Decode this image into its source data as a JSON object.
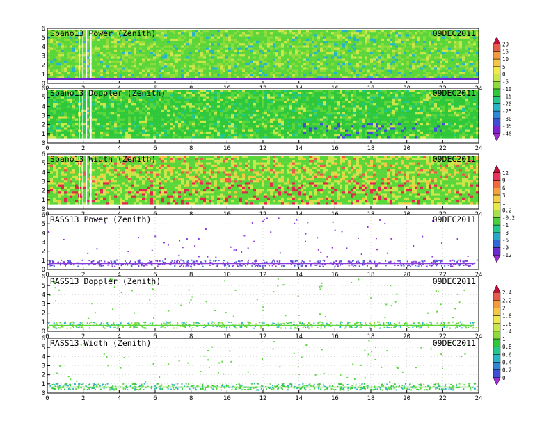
{
  "date": "09DEC2011",
  "chart_data": [
    {
      "type": "heatmap",
      "title": "Spano13 Power (Zenith)",
      "date": "09DEC2011",
      "x_ticks": [
        "0",
        "2",
        "4",
        "6",
        "8",
        "10",
        "12",
        "14",
        "16",
        "18",
        "20",
        "22",
        "24"
      ],
      "y_ticks": [
        "0",
        "1",
        "2",
        "3",
        "4",
        "5",
        "6"
      ],
      "xlim": [
        0,
        24
      ],
      "ylim": [
        0,
        6
      ],
      "colorbar": {
        "labels": [
          "20",
          "15",
          "10",
          "5",
          "0",
          "-5",
          "-10",
          "-15",
          "-20",
          "-25",
          "-30",
          "-35",
          "-40"
        ],
        "colors": [
          "#cc0a3a",
          "#e85a4a",
          "#f49a3c",
          "#f4c642",
          "#f1e84a",
          "#c9e64a",
          "#8edc3a",
          "#2ec83a",
          "#22c88a",
          "#28b4c8",
          "#2f86d6",
          "#3f4ed8",
          "#7e22d0",
          "#a42ad6"
        ]
      },
      "dominant_colors": [
        "#5ad63a",
        "#8edc3a",
        "#c9e64a",
        "#28b4c8"
      ]
    },
    {
      "type": "heatmap",
      "title": "Spano13 Doppler (Zenith)",
      "date": "09DEC2011",
      "x_ticks": [
        "0",
        "2",
        "4",
        "6",
        "8",
        "10",
        "12",
        "14",
        "16",
        "18",
        "20",
        "22",
        "24"
      ],
      "y_ticks": [
        "0",
        "1",
        "2",
        "3",
        "4",
        "5",
        "6"
      ],
      "xlim": [
        0,
        24
      ],
      "ylim": [
        0,
        6
      ],
      "dominant_colors": [
        "#2ec83a",
        "#5ad63a",
        "#c9e64a",
        "#22c88a",
        "#28b4c8"
      ]
    },
    {
      "type": "heatmap",
      "title": "Spano13 Width (Zenith)",
      "date": "09DEC2011",
      "x_ticks": [
        "0",
        "2",
        "4",
        "6",
        "8",
        "10",
        "12",
        "14",
        "16",
        "18",
        "20",
        "22",
        "24"
      ],
      "y_ticks": [
        "0",
        "1",
        "2",
        "3",
        "4",
        "5",
        "6"
      ],
      "xlim": [
        0,
        24
      ],
      "ylim": [
        0,
        6
      ],
      "colorbar": {
        "labels": [
          "12",
          "9",
          "6",
          "3",
          "1",
          "0.2",
          "-0.2",
          "-1",
          "-3",
          "-6",
          "-9",
          "-12"
        ],
        "colors": [
          "#cc0a3a",
          "#e8325a",
          "#f26a3c",
          "#f4a23c",
          "#f4d042",
          "#e8e84a",
          "#a8e04a",
          "#4cd03a",
          "#22c88a",
          "#28a8c8",
          "#3068d8",
          "#6a2ad0",
          "#a42ad6"
        ]
      },
      "dominant_colors": [
        "#5ad63a",
        "#c9e64a",
        "#f4c642",
        "#e85a4a"
      ]
    },
    {
      "type": "scatter",
      "title": "RASS13 Power (Zenith)",
      "date": "09DEC2011",
      "x_ticks": [
        "0",
        "2",
        "4",
        "6",
        "8",
        "10",
        "12",
        "14",
        "16",
        "18",
        "20",
        "22",
        "24"
      ],
      "y_ticks": [
        "0",
        "1",
        "2",
        "3",
        "4",
        "5",
        "6"
      ],
      "xlim": [
        0,
        24
      ],
      "ylim": [
        0,
        6
      ],
      "dominant_colors": [
        "#8a3ad8",
        "#6a40d8",
        "#3f6ed8"
      ]
    },
    {
      "type": "scatter",
      "title": "RASS13 Doppler (Zenith)",
      "date": "09DEC2011",
      "x_ticks": [
        "0",
        "2",
        "4",
        "6",
        "8",
        "10",
        "12",
        "14",
        "16",
        "18",
        "20",
        "22",
        "24"
      ],
      "y_ticks": [
        "0",
        "1",
        "2",
        "3",
        "4",
        "5",
        "6"
      ],
      "xlim": [
        0,
        24
      ],
      "ylim": [
        0,
        6
      ],
      "colorbar": {
        "labels": [
          "2.4",
          "2.2",
          "2",
          "1.8",
          "1.6",
          "1.4",
          "1",
          "0.8",
          "0.6",
          "0.4",
          "0.2",
          "0"
        ],
        "colors": [
          "#cc0a3a",
          "#e85a4a",
          "#f49a3c",
          "#f4c642",
          "#f1e84a",
          "#c9e64a",
          "#8edc3a",
          "#2ec83a",
          "#22c88a",
          "#28b4c8",
          "#2f86d6",
          "#3f4ed8",
          "#a42ad6"
        ]
      },
      "dominant_colors": [
        "#5ad63a",
        "#8edc3a",
        "#28b4c8"
      ]
    },
    {
      "type": "scatter",
      "title": "RASS13 Width (Zenith)",
      "date": "09DEC2011",
      "x_ticks": [
        "0",
        "2",
        "4",
        "6",
        "8",
        "10",
        "12",
        "14",
        "16",
        "18",
        "20",
        "22",
        "24"
      ],
      "y_ticks": [
        "0",
        "1",
        "2",
        "3",
        "4",
        "5",
        "6"
      ],
      "xlim": [
        0,
        24
      ],
      "ylim": [
        0,
        6
      ],
      "dominant_colors": [
        "#5ad63a",
        "#2ec83a",
        "#28b4c8"
      ]
    }
  ]
}
